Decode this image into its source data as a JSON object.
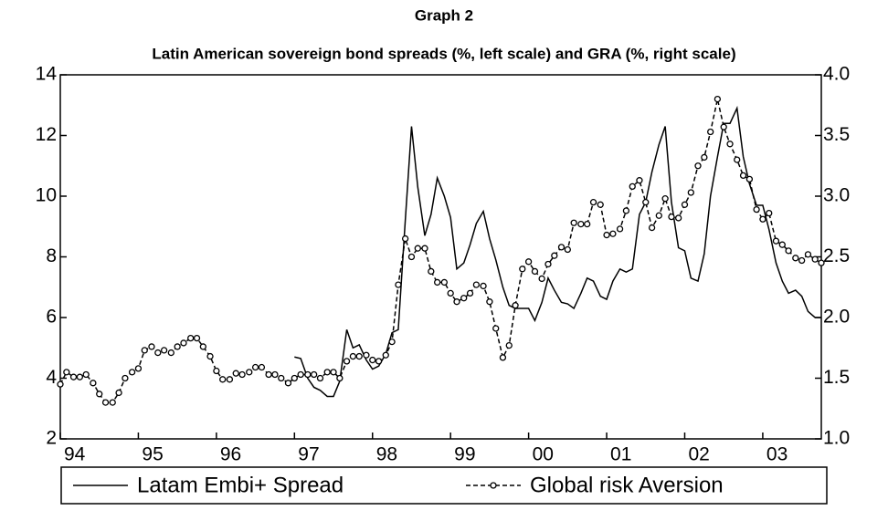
{
  "chart_data": {
    "type": "line",
    "title": "Graph 2",
    "subtitle": "Latin American sovereign bond spreads (%, left scale) and GRA (%, right scale)",
    "x": [
      1994.0,
      1994.08,
      1994.17,
      1994.25,
      1994.33,
      1994.42,
      1994.5,
      1994.58,
      1994.67,
      1994.75,
      1994.83,
      1994.92,
      1995.0,
      1995.08,
      1995.17,
      1995.25,
      1995.33,
      1995.42,
      1995.5,
      1995.58,
      1995.67,
      1995.75,
      1995.83,
      1995.92,
      1996.0,
      1996.08,
      1996.17,
      1996.25,
      1996.33,
      1996.42,
      1996.5,
      1996.58,
      1996.67,
      1996.75,
      1996.83,
      1996.92,
      1997.0,
      1997.08,
      1997.17,
      1997.25,
      1997.33,
      1997.42,
      1997.5,
      1997.58,
      1997.67,
      1997.75,
      1997.83,
      1997.92,
      1998.0,
      1998.08,
      1998.17,
      1998.25,
      1998.33,
      1998.42,
      1998.5,
      1998.58,
      1998.67,
      1998.75,
      1998.83,
      1998.92,
      1999.0,
      1999.08,
      1999.17,
      1999.25,
      1999.33,
      1999.42,
      1999.5,
      1999.58,
      1999.67,
      1999.75,
      1999.83,
      1999.92,
      2000.0,
      2000.08,
      2000.17,
      2000.25,
      2000.33,
      2000.42,
      2000.5,
      2000.58,
      2000.67,
      2000.75,
      2000.83,
      2000.92,
      2001.0,
      2001.08,
      2001.17,
      2001.25,
      2001.33,
      2001.42,
      2001.5,
      2001.58,
      2001.67,
      2001.75,
      2001.83,
      2001.92,
      2002.0,
      2002.08,
      2002.17,
      2002.25,
      2002.33,
      2002.42,
      2002.5,
      2002.58,
      2002.67,
      2002.75,
      2002.83,
      2002.92,
      2003.0,
      2003.08,
      2003.17,
      2003.25,
      2003.33,
      2003.42,
      2003.5,
      2003.58,
      2003.67,
      2003.75
    ],
    "xlim": [
      1994,
      2003.75
    ],
    "xticks": [
      {
        "value": 1994,
        "label": "94"
      },
      {
        "value": 1995,
        "label": "95"
      },
      {
        "value": 1996,
        "label": "96"
      },
      {
        "value": 1997,
        "label": "97"
      },
      {
        "value": 1998,
        "label": "98"
      },
      {
        "value": 1999,
        "label": "99"
      },
      {
        "value": 2000,
        "label": "00"
      },
      {
        "value": 2001,
        "label": "01"
      },
      {
        "value": 2002,
        "label": "02"
      },
      {
        "value": 2003,
        "label": "03"
      }
    ],
    "ylim": [
      2,
      14
    ],
    "yticks": [
      2,
      4,
      6,
      8,
      10,
      12,
      14
    ],
    "y2lim": [
      1,
      4
    ],
    "y2ticks": [
      {
        "value": 1,
        "label": "1.0"
      },
      1.5,
      {
        "value": 2,
        "label": "2.0"
      },
      2.5,
      {
        "value": 3,
        "label": "3.0"
      },
      3.5,
      {
        "value": 4,
        "label": "4.0"
      }
    ],
    "series": [
      {
        "name": "Latam Embi+ Spread",
        "color": "#000000",
        "style": "solid",
        "values": [
          null,
          null,
          null,
          null,
          null,
          null,
          null,
          null,
          null,
          null,
          null,
          null,
          null,
          null,
          null,
          null,
          null,
          null,
          null,
          null,
          null,
          null,
          null,
          null,
          null,
          null,
          null,
          null,
          null,
          null,
          null,
          null,
          null,
          null,
          null,
          null,
          4.7,
          4.65,
          4.0,
          3.7,
          3.6,
          3.4,
          3.4,
          3.9,
          5.6,
          5.0,
          5.1,
          4.6,
          4.3,
          4.4,
          4.8,
          5.5,
          5.6,
          9.2,
          12.3,
          10.3,
          8.7,
          9.4,
          10.6,
          10.0,
          9.3,
          7.6,
          7.8,
          8.4,
          9.1,
          9.5,
          8.6,
          7.9,
          7.0,
          6.4,
          6.3,
          6.3,
          6.3,
          5.9,
          6.5,
          7.3,
          6.9,
          6.5,
          6.45,
          6.3,
          6.8,
          7.3,
          7.2,
          6.7,
          6.6,
          7.2,
          7.6,
          7.5,
          7.6,
          9.4,
          9.8,
          10.8,
          11.7,
          12.3,
          9.8,
          8.3,
          8.2,
          7.3,
          7.2,
          8.1,
          10.0,
          11.3,
          12.4,
          12.4,
          12.9,
          11.3,
          10.4,
          9.7,
          9.7,
          8.9,
          7.8,
          7.2,
          6.8,
          6.9,
          6.7,
          6.2,
          6.0,
          6.0
        ]
      },
      {
        "name": "Global risk Aversion",
        "color": "#000000",
        "style": "dashed-marker",
        "axis": "y2",
        "values": [
          1.45,
          1.55,
          1.51,
          1.51,
          1.53,
          1.46,
          1.37,
          1.3,
          1.3,
          1.38,
          1.5,
          1.55,
          1.58,
          1.73,
          1.76,
          1.71,
          1.73,
          1.71,
          1.76,
          1.79,
          1.83,
          1.83,
          1.76,
          1.68,
          1.56,
          1.49,
          1.49,
          1.54,
          1.53,
          1.55,
          1.59,
          1.59,
          1.53,
          1.53,
          1.5,
          1.46,
          1.5,
          1.53,
          1.53,
          1.53,
          1.5,
          1.55,
          1.55,
          1.5,
          1.64,
          1.68,
          1.68,
          1.69,
          1.65,
          1.64,
          1.69,
          1.8,
          2.27,
          2.65,
          2.5,
          2.57,
          2.57,
          2.38,
          2.29,
          2.29,
          2.2,
          2.13,
          2.16,
          2.2,
          2.27,
          2.26,
          2.13,
          1.91,
          1.67,
          1.77,
          2.1,
          2.4,
          2.46,
          2.38,
          2.32,
          2.44,
          2.51,
          2.58,
          2.56,
          2.78,
          2.77,
          2.77,
          2.95,
          2.93,
          2.68,
          2.69,
          2.73,
          2.88,
          3.08,
          3.13,
          2.95,
          2.74,
          2.84,
          2.98,
          2.83,
          2.82,
          2.93,
          3.03,
          3.25,
          3.32,
          3.53,
          3.8,
          3.57,
          3.43,
          3.3,
          3.17,
          3.14,
          2.89,
          2.81,
          2.86,
          2.63,
          2.6,
          2.55,
          2.49,
          2.47,
          2.52,
          2.48,
          2.45
        ]
      }
    ],
    "legend": "bottom"
  }
}
